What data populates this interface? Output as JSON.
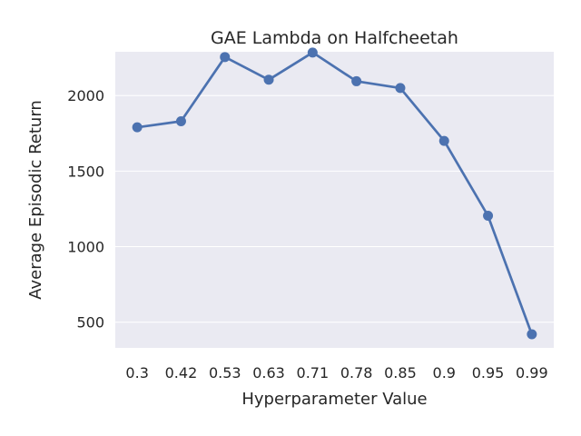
{
  "chart_data": {
    "type": "line",
    "title": "GAE Lambda on Halfcheetah",
    "xlabel": "Hyperparameter Value",
    "ylabel": "Average Episodic Return",
    "categories": [
      "0.3",
      "0.42",
      "0.53",
      "0.63",
      "0.71",
      "0.78",
      "0.85",
      "0.9",
      "0.95",
      "0.99"
    ],
    "series": [
      {
        "values": [
          1790,
          1830,
          2255,
          2105,
          2285,
          2095,
          2050,
          1700,
          1205,
          420
        ]
      }
    ],
    "yticks": [
      500,
      1000,
      1500,
      2000
    ],
    "ylim": [
      330,
      2290
    ],
    "grid": true,
    "colors": {
      "line": "#4c72b0",
      "plot_bg": "#eaeaf2",
      "grid": "#ffffff",
      "text": "#262626"
    }
  }
}
